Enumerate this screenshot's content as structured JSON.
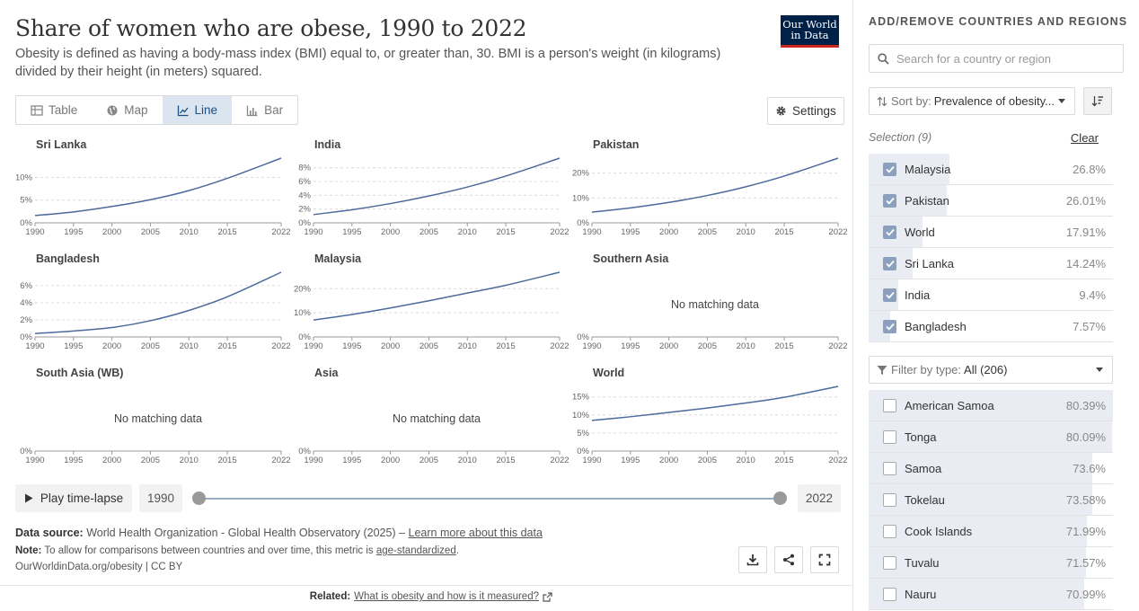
{
  "header": {
    "title": "Share of women who are obese, 1990 to 2022",
    "subtitle": "Obesity is defined as having a body-mass index (BMI) equal to, or greater than, 30. BMI is a person's weight (in kilograms) divided by their height (in meters) squared.",
    "logo_line1": "Our World",
    "logo_line2": "in Data"
  },
  "tabs": [
    {
      "label": "Table",
      "icon": "table-icon"
    },
    {
      "label": "Map",
      "icon": "globe-icon"
    },
    {
      "label": "Line",
      "icon": "line-chart-icon",
      "active": true
    },
    {
      "label": "Bar",
      "icon": "bar-chart-icon"
    }
  ],
  "settings_label": "Settings",
  "timeline": {
    "play_label": "Play time-lapse",
    "start_year": "1990",
    "end_year": "2022"
  },
  "footer": {
    "source_label": "Data source:",
    "source_text": "World Health Organization - Global Health Observatory (2025) –",
    "learn_more": "Learn more about this data",
    "note_label": "Note:",
    "note_text": "To allow for comparisons between countries and over time, this metric is",
    "note_link": "age-standardized",
    "note_end": ".",
    "url": "OurWorldinData.org/obesity | CC BY",
    "related_label": "Related:",
    "related_link": "What is obesity and how is it measured?"
  },
  "sidebar": {
    "title": "ADD/REMOVE COUNTRIES AND REGIONS",
    "search_placeholder": "Search for a country or region",
    "sort_label": "Sort by:",
    "sort_value": "Prevalence of obesity...",
    "selection_label": "Selection (9)",
    "clear_label": "Clear",
    "selected": [
      {
        "name": "Malaysia",
        "value": "26.8%",
        "frac": 0.33
      },
      {
        "name": "Pakistan",
        "value": "26.01%",
        "frac": 0.32
      },
      {
        "name": "World",
        "value": "17.91%",
        "frac": 0.22
      },
      {
        "name": "Sri Lanka",
        "value": "14.24%",
        "frac": 0.18
      },
      {
        "name": "India",
        "value": "9.4%",
        "frac": 0.12
      },
      {
        "name": "Bangladesh",
        "value": "7.57%",
        "frac": 0.09
      }
    ],
    "filter_label": "Filter by type:",
    "filter_value": "All (206)",
    "available": [
      {
        "name": "American Samoa",
        "value": "80.39%",
        "frac": 1.0
      },
      {
        "name": "Tonga",
        "value": "80.09%",
        "frac": 0.996
      },
      {
        "name": "Samoa",
        "value": "73.6%",
        "frac": 0.916
      },
      {
        "name": "Tokelau",
        "value": "73.58%",
        "frac": 0.915
      },
      {
        "name": "Cook Islands",
        "value": "71.99%",
        "frac": 0.895
      },
      {
        "name": "Tuvalu",
        "value": "71.57%",
        "frac": 0.89
      },
      {
        "name": "Nauru",
        "value": "70.99%",
        "frac": 0.883
      }
    ]
  },
  "chart_data": {
    "type": "line",
    "x_ticks": [
      1990,
      1995,
      2000,
      2005,
      2010,
      2015,
      2022
    ],
    "line_color": "#4c6a9c",
    "no_data_text": "No matching data",
    "panels": [
      {
        "title": "Sri Lanka",
        "y_ticks": [
          "0%",
          "5%",
          "10%"
        ],
        "y_tick_values": [
          0,
          5,
          10
        ],
        "ymax": 14.24,
        "x": [
          1990,
          1995,
          2000,
          2005,
          2010,
          2015,
          2022
        ],
        "values": [
          1.6,
          2.4,
          3.6,
          5.1,
          7.1,
          9.8,
          14.24
        ]
      },
      {
        "title": "India",
        "y_ticks": [
          "0%",
          "2%",
          "4%",
          "6%",
          "8%"
        ],
        "y_tick_values": [
          0,
          2,
          4,
          6,
          8
        ],
        "ymax": 9.4,
        "x": [
          1990,
          1995,
          2000,
          2005,
          2010,
          2015,
          2022
        ],
        "values": [
          1.2,
          1.9,
          2.8,
          3.9,
          5.2,
          6.8,
          9.4
        ]
      },
      {
        "title": "Pakistan",
        "y_ticks": [
          "0%",
          "10%",
          "20%"
        ],
        "y_tick_values": [
          0,
          10,
          20
        ],
        "ymax": 26.01,
        "x": [
          1990,
          1995,
          2000,
          2005,
          2010,
          2015,
          2022
        ],
        "values": [
          4.3,
          6.0,
          8.2,
          11.0,
          14.5,
          18.8,
          26.01
        ]
      },
      {
        "title": "Bangladesh",
        "y_ticks": [
          "0%",
          "2%",
          "4%",
          "6%"
        ],
        "y_tick_values": [
          0,
          2,
          4,
          6
        ],
        "ymax": 7.57,
        "x": [
          1990,
          1995,
          2000,
          2005,
          2010,
          2015,
          2022
        ],
        "values": [
          0.4,
          0.7,
          1.1,
          1.9,
          3.1,
          4.7,
          7.57
        ]
      },
      {
        "title": "Malaysia",
        "y_ticks": [
          "0%",
          "10%",
          "20%"
        ],
        "y_tick_values": [
          0,
          10,
          20
        ],
        "ymax": 26.8,
        "x": [
          1990,
          1995,
          2000,
          2005,
          2010,
          2015,
          2022
        ],
        "values": [
          7.0,
          9.3,
          12.0,
          15.0,
          18.2,
          21.4,
          26.8
        ]
      },
      {
        "title": "Southern Asia",
        "y_ticks": [
          "0%"
        ],
        "y_tick_values": [
          0
        ],
        "no_data": true
      },
      {
        "title": "South Asia (WB)",
        "y_ticks": [
          "0%"
        ],
        "y_tick_values": [
          0
        ],
        "no_data": true
      },
      {
        "title": "Asia",
        "y_ticks": [
          "0%"
        ],
        "y_tick_values": [
          0
        ],
        "no_data": true
      },
      {
        "title": "World",
        "y_ticks": [
          "0%",
          "5%",
          "10%",
          "15%"
        ],
        "y_tick_values": [
          0,
          5,
          10,
          15
        ],
        "ymax": 17.91,
        "x": [
          1990,
          1995,
          2000,
          2005,
          2010,
          2015,
          2022
        ],
        "values": [
          8.5,
          9.5,
          10.7,
          11.9,
          13.3,
          14.9,
          17.91
        ]
      }
    ]
  }
}
